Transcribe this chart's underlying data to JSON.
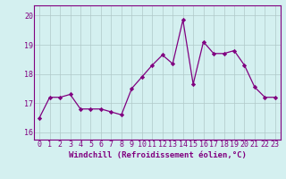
{
  "x": [
    0,
    1,
    2,
    3,
    4,
    5,
    6,
    7,
    8,
    9,
    10,
    11,
    12,
    13,
    14,
    15,
    16,
    17,
    18,
    19,
    20,
    21,
    22,
    23
  ],
  "y": [
    16.5,
    17.2,
    17.2,
    17.3,
    16.8,
    16.8,
    16.8,
    16.7,
    16.6,
    17.5,
    17.9,
    18.3,
    18.65,
    18.35,
    19.85,
    17.65,
    19.1,
    18.7,
    18.7,
    18.8,
    18.3,
    17.55,
    17.2,
    17.2
  ],
  "line_color": "#800080",
  "marker": "D",
  "marker_size": 2.2,
  "linewidth": 0.9,
  "xlabel": "Windchill (Refroidissement éolien,°C)",
  "xlim": [
    -0.5,
    23.5
  ],
  "ylim": [
    15.75,
    20.35
  ],
  "yticks": [
    16,
    17,
    18,
    19,
    20
  ],
  "xticks": [
    0,
    1,
    2,
    3,
    4,
    5,
    6,
    7,
    8,
    9,
    10,
    11,
    12,
    13,
    14,
    15,
    16,
    17,
    18,
    19,
    20,
    21,
    22,
    23
  ],
  "bg_color": "#d4f0f0",
  "grid_color": "#b0c8c8",
  "axis_color": "#800080",
  "tick_color": "#800080",
  "label_color": "#800080",
  "xlabel_fontsize": 6.5,
  "tick_fontsize": 6.0
}
